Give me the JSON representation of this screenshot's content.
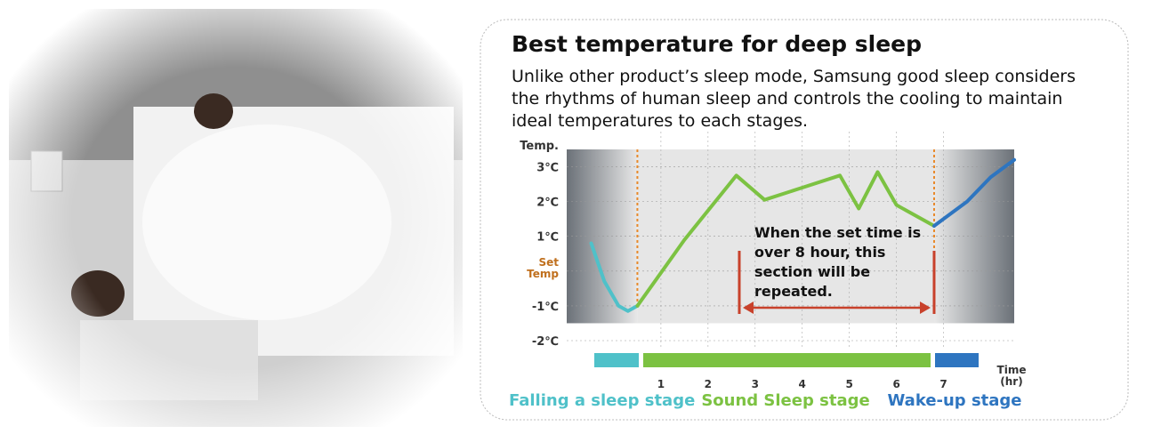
{
  "chart_data": {
    "type": "line",
    "title": "Best temperature for deep sleep",
    "subtitle": [
      "Unlike other product’s sleep mode, Samsung good sleep considers",
      "the rhythms of human sleep and controls the cooling to maintain",
      "ideal temperatures to each stages."
    ],
    "y_label": "Temp.",
    "x_label": [
      "Time",
      "(hr)"
    ],
    "annotation": [
      "When the set time is",
      "over 8 hour, this",
      "section will be",
      "repeated."
    ],
    "ylim": [
      -2,
      3.5
    ],
    "yticks": [
      {
        "value": 3,
        "label": "3℃"
      },
      {
        "value": 2,
        "label": "2℃"
      },
      {
        "value": 1,
        "label": "1℃"
      },
      {
        "value": 0,
        "label": "Set Temp"
      },
      {
        "value": -1,
        "label": "-1℃"
      },
      {
        "value": -2,
        "label": "-2℃"
      }
    ],
    "xlim": [
      -1,
      8.5
    ],
    "xticks": [
      1,
      2,
      3,
      4,
      5,
      6,
      7
    ],
    "series": [
      {
        "name": "Falling a sleep stage",
        "color": "#4fc1c9",
        "x": [
          -0.48,
          -0.2,
          0.1,
          0.3,
          0.5
        ],
        "values": [
          0.8,
          -0.3,
          -1.0,
          -1.15,
          -1.0
        ]
      },
      {
        "name": "Sound Sleep stage",
        "color": "#7cc242",
        "x": [
          0.5,
          1.5,
          2.6,
          3.2,
          4.0,
          4.8,
          5.2,
          5.6,
          6.0,
          6.8
        ],
        "values": [
          -1.0,
          0.9,
          2.75,
          2.05,
          2.4,
          2.75,
          1.8,
          2.85,
          1.9,
          1.3
        ]
      },
      {
        "name": "Wake-up stage",
        "color": "#2e75c0",
        "x": [
          6.8,
          7.5,
          8.0,
          8.5
        ],
        "values": [
          1.3,
          2.0,
          2.7,
          3.2
        ]
      }
    ]
  }
}
